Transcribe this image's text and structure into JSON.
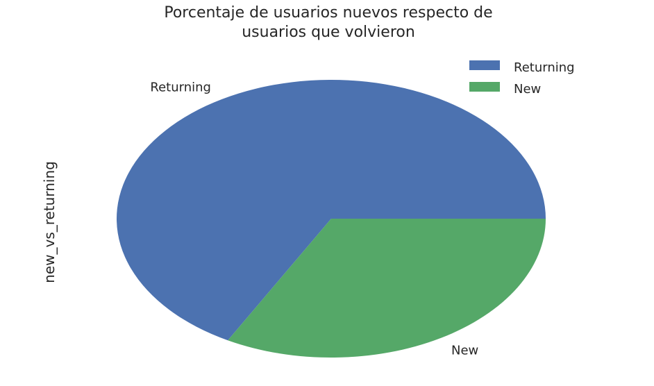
{
  "chart_data": {
    "type": "pie",
    "title_lines": [
      "Porcentaje de usuarios nuevos respecto de",
      "usuarios que volvieron"
    ],
    "ylabel": "new_vs_returning",
    "categories": [
      "Returning",
      "New"
    ],
    "values": [
      67,
      33
    ],
    "colors": [
      "#4C72B0",
      "#55A868"
    ],
    "start_angle_deg": 0,
    "direction": "counterclockwise",
    "legend": {
      "placement": "top-right",
      "entries": [
        "Returning",
        "New"
      ]
    }
  }
}
